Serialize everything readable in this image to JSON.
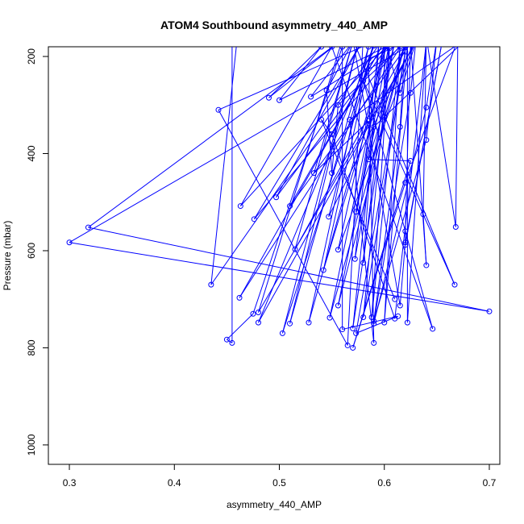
{
  "chart_data": {
    "type": "line",
    "title": "ATOM4 Southbound asymmetry_440_AMP",
    "xlabel": "asymmetry_440_AMP",
    "ylabel": "Pressure (mbar)",
    "xlim": [
      0.28,
      0.71
    ],
    "ylim": [
      1040,
      180
    ],
    "y_reversed": true,
    "x_ticks": [
      "0.3",
      "0.4",
      "0.5",
      "0.6",
      "0.7"
    ],
    "x_tick_values": [
      0.3,
      0.4,
      0.5,
      0.6,
      0.7
    ],
    "y_ticks": [
      "200",
      "400",
      "600",
      "800",
      "1000"
    ],
    "y_tick_values": [
      200,
      400,
      600,
      800,
      1000
    ],
    "grid": false,
    "legend": "none",
    "series_color": "#0000ff",
    "points": [
      [
        0.455,
        160
      ],
      [
        0.455,
        790
      ],
      [
        0.45,
        783
      ],
      [
        0.475,
        730
      ],
      [
        0.56,
        180
      ],
      [
        0.58,
        155
      ],
      [
        0.565,
        795
      ],
      [
        0.442,
        310
      ],
      [
        0.6,
        160
      ],
      [
        0.435,
        670
      ],
      [
        0.46,
        160
      ],
      [
        0.63,
        170
      ],
      [
        0.3,
        583
      ],
      [
        0.7,
        725
      ],
      [
        0.318,
        552
      ],
      [
        0.56,
        165
      ],
      [
        0.49,
        285
      ],
      [
        0.54,
        180
      ],
      [
        0.5,
        290
      ],
      [
        0.62,
        160
      ],
      [
        0.53,
        283
      ],
      [
        0.57,
        170
      ],
      [
        0.545,
        270
      ],
      [
        0.55,
        440
      ],
      [
        0.556,
        300
      ],
      [
        0.62,
        170
      ],
      [
        0.585,
        205
      ],
      [
        0.59,
        790
      ],
      [
        0.567,
        330
      ],
      [
        0.68,
        160
      ],
      [
        0.59,
        345
      ],
      [
        0.57,
        760
      ],
      [
        0.6,
        325
      ],
      [
        0.6,
        165
      ],
      [
        0.615,
        275
      ],
      [
        0.63,
        170
      ],
      [
        0.625,
        275
      ],
      [
        0.59,
        750
      ],
      [
        0.64,
        305
      ],
      [
        0.65,
        165
      ],
      [
        0.64,
        372
      ],
      [
        0.59,
        745
      ],
      [
        0.615,
        345
      ],
      [
        0.62,
        170
      ],
      [
        0.585,
        412
      ],
      [
        0.625,
        415
      ],
      [
        0.57,
        800
      ],
      [
        0.62,
        460
      ],
      [
        0.67,
        165
      ],
      [
        0.668,
        551
      ],
      [
        0.64,
        160
      ],
      [
        0.637,
        525
      ],
      [
        0.64,
        630
      ],
      [
        0.625,
        170
      ],
      [
        0.62,
        560
      ],
      [
        0.62,
        588
      ],
      [
        0.655,
        170
      ],
      [
        0.62,
        583
      ],
      [
        0.615,
        713
      ],
      [
        0.57,
        165
      ],
      [
        0.667,
        670
      ],
      [
        0.58,
        250
      ],
      [
        0.646,
        761
      ],
      [
        0.55,
        180
      ],
      [
        0.463,
        508
      ],
      [
        0.61,
        160
      ],
      [
        0.497,
        490
      ],
      [
        0.58,
        165
      ],
      [
        0.476,
        535
      ],
      [
        0.62,
        165
      ],
      [
        0.462,
        697
      ],
      [
        0.6,
        170
      ],
      [
        0.51,
        508
      ],
      [
        0.625,
        168
      ],
      [
        0.515,
        597
      ],
      [
        0.57,
        170
      ],
      [
        0.533,
        440
      ],
      [
        0.585,
        333
      ],
      [
        0.542,
        640
      ],
      [
        0.59,
        170
      ],
      [
        0.547,
        530
      ],
      [
        0.63,
        165
      ],
      [
        0.556,
        598
      ],
      [
        0.6,
        172
      ],
      [
        0.573,
        520
      ],
      [
        0.61,
        168
      ],
      [
        0.572,
        617
      ],
      [
        0.595,
        168
      ],
      [
        0.58,
        625
      ],
      [
        0.605,
        170
      ],
      [
        0.556,
        713
      ],
      [
        0.62,
        172
      ],
      [
        0.548,
        738
      ],
      [
        0.602,
        175
      ],
      [
        0.528,
        748
      ],
      [
        0.585,
        180
      ],
      [
        0.51,
        750
      ],
      [
        0.575,
        172
      ],
      [
        0.503,
        770
      ],
      [
        0.59,
        178
      ],
      [
        0.48,
        748
      ],
      [
        0.63,
        170
      ],
      [
        0.48,
        727
      ],
      [
        0.56,
        165
      ],
      [
        0.56,
        762
      ],
      [
        0.613,
        735
      ],
      [
        0.573,
        770
      ],
      [
        0.62,
        190
      ],
      [
        0.58,
        737
      ],
      [
        0.605,
        183
      ],
      [
        0.588,
        737
      ],
      [
        0.615,
        180
      ],
      [
        0.6,
        748
      ],
      [
        0.622,
        176
      ],
      [
        0.622,
        748
      ],
      [
        0.64,
        170
      ],
      [
        0.61,
        740
      ],
      [
        0.55,
        360
      ],
      [
        0.54,
        330
      ],
      [
        0.61,
        700
      ]
    ]
  }
}
